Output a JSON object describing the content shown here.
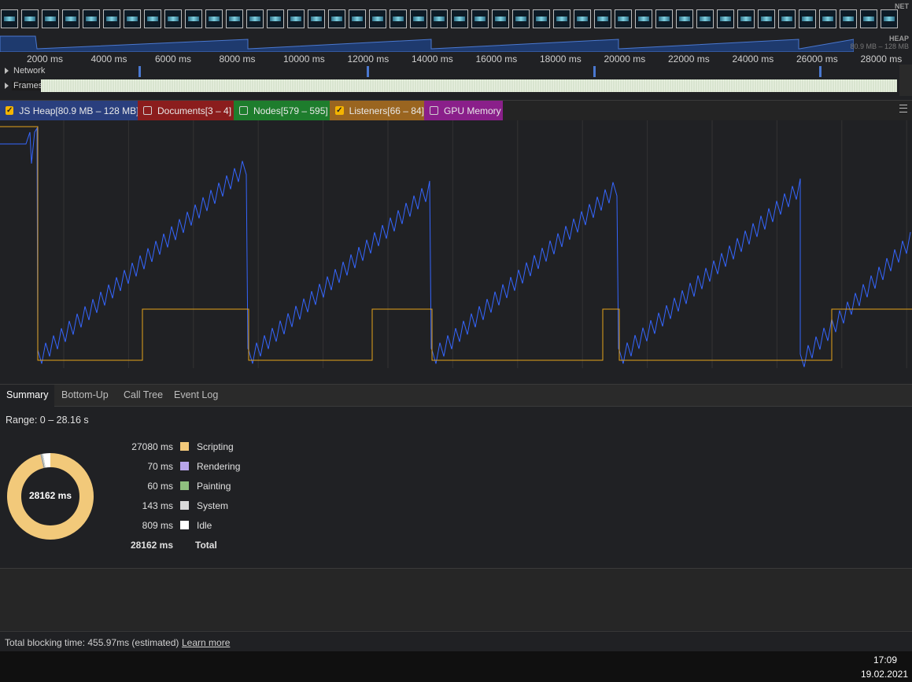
{
  "overview": {
    "net_label": "NET",
    "heap_label": "HEAP",
    "heap_range": "80.9 MB – 128 MB",
    "ruler_ticks": [
      "2000 ms",
      "4000 ms",
      "6000 ms",
      "8000 ms",
      "10000 ms",
      "12000 ms",
      "14000 ms",
      "16000 ms",
      "18000 ms",
      "20000 ms",
      "22000 ms",
      "24000 ms",
      "26000 ms",
      "28000 ms"
    ]
  },
  "tracks": {
    "network": "Network",
    "frames": "Frames"
  },
  "counters": [
    {
      "label": "JS Heap[80.9 MB – 128 MB]",
      "checked": true,
      "color": "#2a3f7e"
    },
    {
      "label": "Documents[3 – 4]",
      "checked": false,
      "color": "#8b1d1d"
    },
    {
      "label": "Nodes[579 – 595]",
      "checked": false,
      "color": "#1e7d2d"
    },
    {
      "label": "Listeners[66 – 84]",
      "checked": true,
      "color": "#9a6520"
    },
    {
      "label": "GPU Memory",
      "checked": false,
      "color": "#8a1f8a"
    }
  ],
  "colors": {
    "heap_line": "#3566ff",
    "listeners_line": "#e3a21a"
  },
  "tabs": [
    "Summary",
    "Bottom-Up",
    "Call Tree",
    "Event Log"
  ],
  "summary": {
    "range": "Range: 0 – 28.16 s",
    "total_center": "28162 ms",
    "rows": [
      {
        "value": "27080 ms",
        "label": "Scripting",
        "color": "#f2c97a"
      },
      {
        "value": "70 ms",
        "label": "Rendering",
        "color": "#b7a5ea"
      },
      {
        "value": "60 ms",
        "label": "Painting",
        "color": "#8fc07f"
      },
      {
        "value": "143 ms",
        "label": "System",
        "color": "#d9d9d9"
      },
      {
        "value": "809 ms",
        "label": "Idle",
        "color": "#ffffff"
      }
    ],
    "total_value": "28162 ms",
    "total_label": "Total"
  },
  "footer": {
    "tbt": "Total blocking time: 455.97ms (estimated)",
    "learn_more": "Learn more"
  },
  "taskbar": {
    "time": "17:09",
    "date": "19.02.2021"
  }
}
